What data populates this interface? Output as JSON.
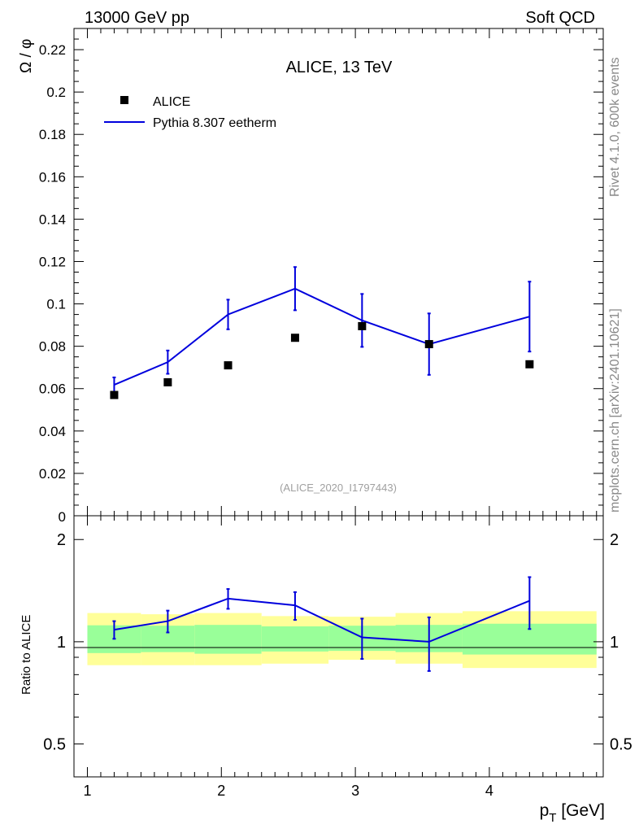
{
  "header": {
    "left": "13000 GeV pp",
    "right": "Soft QCD"
  },
  "side_labels": {
    "rivet": "Rivet 4.1.0,  600k events",
    "mcplots": "mcplots.cern.ch [arXiv:2401.10621]"
  },
  "chart_data": [
    {
      "type": "scatter",
      "title": "ALICE, 13 TeV",
      "analysis_id": "(ALICE_2020_I1797443)",
      "ylabel_main": "Ω",
      "ylabel_sep": " / ",
      "ylabel_sub": "φ",
      "xlim": [
        0.9,
        4.85
      ],
      "ylim": [
        0,
        0.23
      ],
      "yticks": [
        0.02,
        0.04,
        0.06,
        0.08,
        0.1,
        0.12,
        0.14,
        0.16,
        0.18,
        0.2,
        0.22
      ],
      "ytick_labels": [
        "0.02",
        "0.04",
        "0.06",
        "0.08",
        "0.1",
        "0.12",
        "0.14",
        "0.16",
        "0.18",
        "0.2",
        "0.22"
      ],
      "y_zero_label": "0",
      "legend": [
        {
          "label": "ALICE",
          "style": "marker"
        },
        {
          "label": "Pythia 8.307 eetherm",
          "style": "line"
        }
      ],
      "series": [
        {
          "name": "ALICE",
          "x": [
            1.2,
            1.6,
            2.05,
            2.55,
            3.05,
            3.55,
            4.3
          ],
          "y": [
            0.057,
            0.063,
            0.071,
            0.084,
            0.0895,
            0.081,
            0.0715
          ]
        },
        {
          "name": "Pythia 8.307 eetherm",
          "x": [
            1.2,
            1.6,
            2.05,
            2.55,
            3.05,
            3.55,
            4.3
          ],
          "y": [
            0.0618,
            0.0725,
            0.095,
            0.1072,
            0.0922,
            0.081,
            0.094
          ],
          "err": [
            0.0035,
            0.0055,
            0.007,
            0.0102,
            0.0125,
            0.0145,
            0.0165
          ]
        }
      ]
    },
    {
      "type": "line",
      "ylabel": "Ratio to ALICE",
      "xlabel_main": "p",
      "xlabel_sub": "T",
      "xlabel_unit": " [GeV]",
      "xlim": [
        0.9,
        4.85
      ],
      "ylim": [
        0.4,
        2.35
      ],
      "yscale": "log",
      "yticks": [
        0.5,
        1,
        2
      ],
      "ytick_labels": [
        "0.5",
        "1",
        "2"
      ],
      "xticks": [
        1,
        2,
        3,
        4
      ],
      "xtick_labels": [
        "1",
        "2",
        "3",
        "4"
      ],
      "bands": {
        "edges": [
          1.0,
          1.4,
          1.8,
          2.3,
          2.8,
          3.3,
          3.8,
          4.8
        ],
        "stat_lo": [
          0.926,
          0.932,
          0.922,
          0.936,
          0.94,
          0.932,
          0.917
        ],
        "stat_hi": [
          1.118,
          1.115,
          1.121,
          1.11,
          1.115,
          1.121,
          1.13
        ],
        "total_lo": [
          0.853,
          0.853,
          0.853,
          0.862,
          0.885,
          0.862,
          0.837
        ],
        "total_hi": [
          1.215,
          1.205,
          1.215,
          1.19,
          1.185,
          1.215,
          1.23
        ]
      },
      "series": [
        {
          "name": "Pythia 8.307 eetherm / ALICE",
          "x": [
            1.2,
            1.6,
            2.05,
            2.55,
            3.05,
            3.55,
            4.3
          ],
          "y": [
            1.085,
            1.15,
            1.34,
            1.28,
            1.03,
            1.0,
            1.32
          ],
          "err": [
            0.065,
            0.085,
            0.09,
            0.12,
            0.14,
            0.18,
            0.23
          ]
        }
      ]
    }
  ]
}
